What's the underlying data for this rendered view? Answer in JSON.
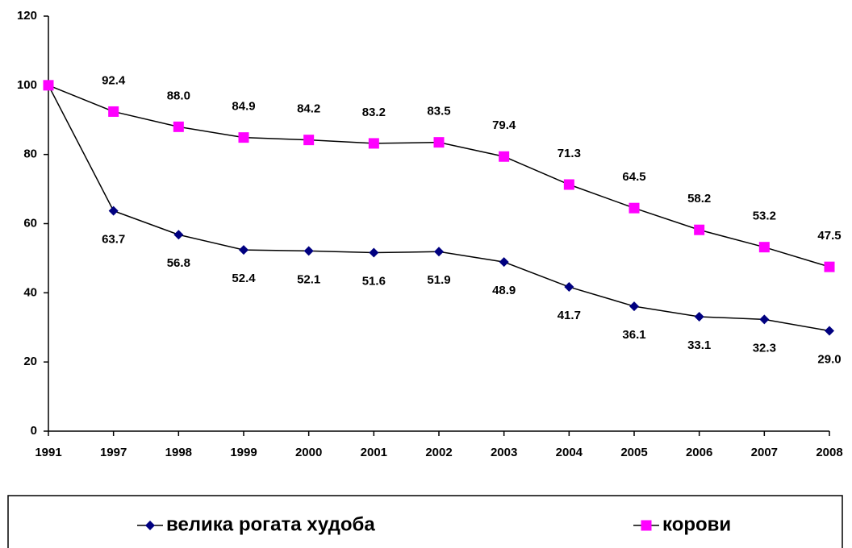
{
  "chart_data": {
    "type": "line",
    "categories": [
      "1991",
      "1997",
      "1998",
      "1999",
      "2000",
      "2001",
      "2002",
      "2003",
      "2004",
      "2005",
      "2006",
      "2007",
      "2008"
    ],
    "series": [
      {
        "name": "велика рогата худоба",
        "color": "#000080",
        "marker": "diamond",
        "values": [
          100,
          63.7,
          56.8,
          52.4,
          52.1,
          51.6,
          51.9,
          48.9,
          41.7,
          36.1,
          33.1,
          32.3,
          29.0
        ],
        "value_labels": [
          null,
          "63.7",
          "56.8",
          "52.4",
          "52.1",
          "51.6",
          "51.9",
          "48.9",
          "41.7",
          "36.1",
          "33.1",
          "32.3",
          "29.0"
        ]
      },
      {
        "name": "корови",
        "color": "#ff00ff",
        "marker": "square",
        "values": [
          100,
          92.4,
          88.0,
          84.9,
          84.2,
          83.2,
          83.5,
          79.4,
          71.3,
          64.5,
          58.2,
          53.2,
          47.5
        ],
        "value_labels": [
          null,
          "92.4",
          "88.0",
          "84.9",
          "84.2",
          "83.2",
          "83.5",
          "79.4",
          "71.3",
          "64.5",
          "58.2",
          "53.2",
          "47.5"
        ]
      }
    ],
    "ylim": [
      0,
      120
    ],
    "yticks": [
      0,
      20,
      40,
      60,
      80,
      100,
      120
    ],
    "grid": false,
    "legend": "bottom"
  }
}
